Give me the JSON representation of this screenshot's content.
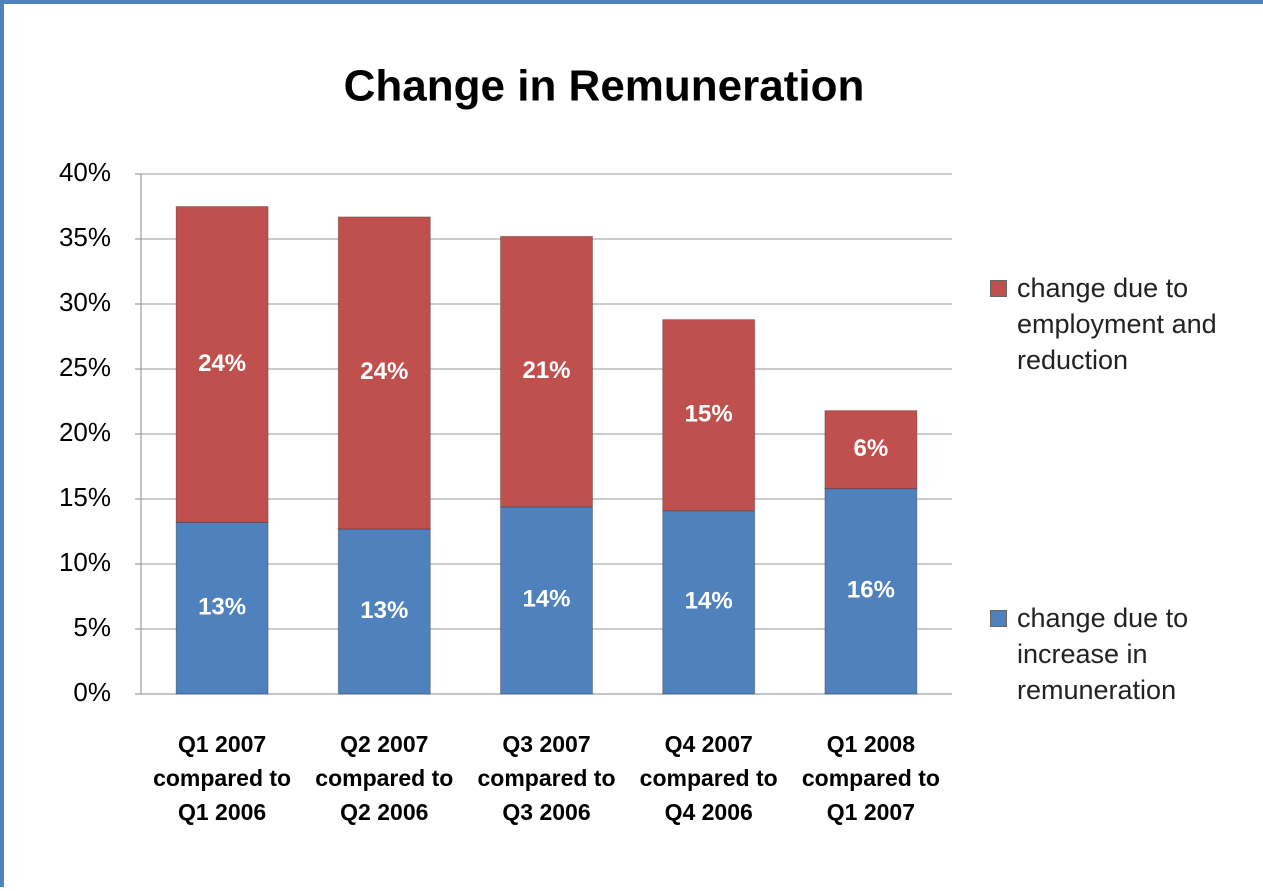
{
  "chart_data": {
    "type": "stacked_bar",
    "title": "Change in Remuneration",
    "categories": [
      [
        "Q1 2007",
        "compared to",
        "Q1 2006"
      ],
      [
        "Q2 2007",
        "compared to",
        "Q2 2006"
      ],
      [
        "Q3 2007",
        "compared to",
        "Q3 2006"
      ],
      [
        "Q4 2007",
        "compared to",
        "Q4 2006"
      ],
      [
        "Q1 2008",
        "compared to",
        "Q1 2007"
      ]
    ],
    "series": [
      {
        "name": "change due to increase in remuneration",
        "color": "#4f81bd",
        "values": [
          13.2,
          12.7,
          14.4,
          14.1,
          15.8
        ],
        "value_labels": [
          "13%",
          "13%",
          "14%",
          "14%",
          "16%"
        ]
      },
      {
        "name": "change due to employment and reduction",
        "color": "#c0504d",
        "values": [
          24.3,
          24.0,
          20.8,
          14.7,
          6.0
        ],
        "value_labels": [
          "24%",
          "24%",
          "21%",
          "15%",
          "6%"
        ]
      }
    ],
    "ylim": [
      0,
      40
    ],
    "yticks": [
      {
        "value": 0,
        "label": "0%"
      },
      {
        "value": 5,
        "label": "5%"
      },
      {
        "value": 10,
        "label": "10%"
      },
      {
        "value": 15,
        "label": "15%"
      },
      {
        "value": 20,
        "label": "20%"
      },
      {
        "value": 25,
        "label": "25%"
      },
      {
        "value": 30,
        "label": "30%"
      },
      {
        "value": 35,
        "label": "35%"
      },
      {
        "value": 40,
        "label": "40%"
      }
    ],
    "grid": true,
    "legend": "right"
  }
}
